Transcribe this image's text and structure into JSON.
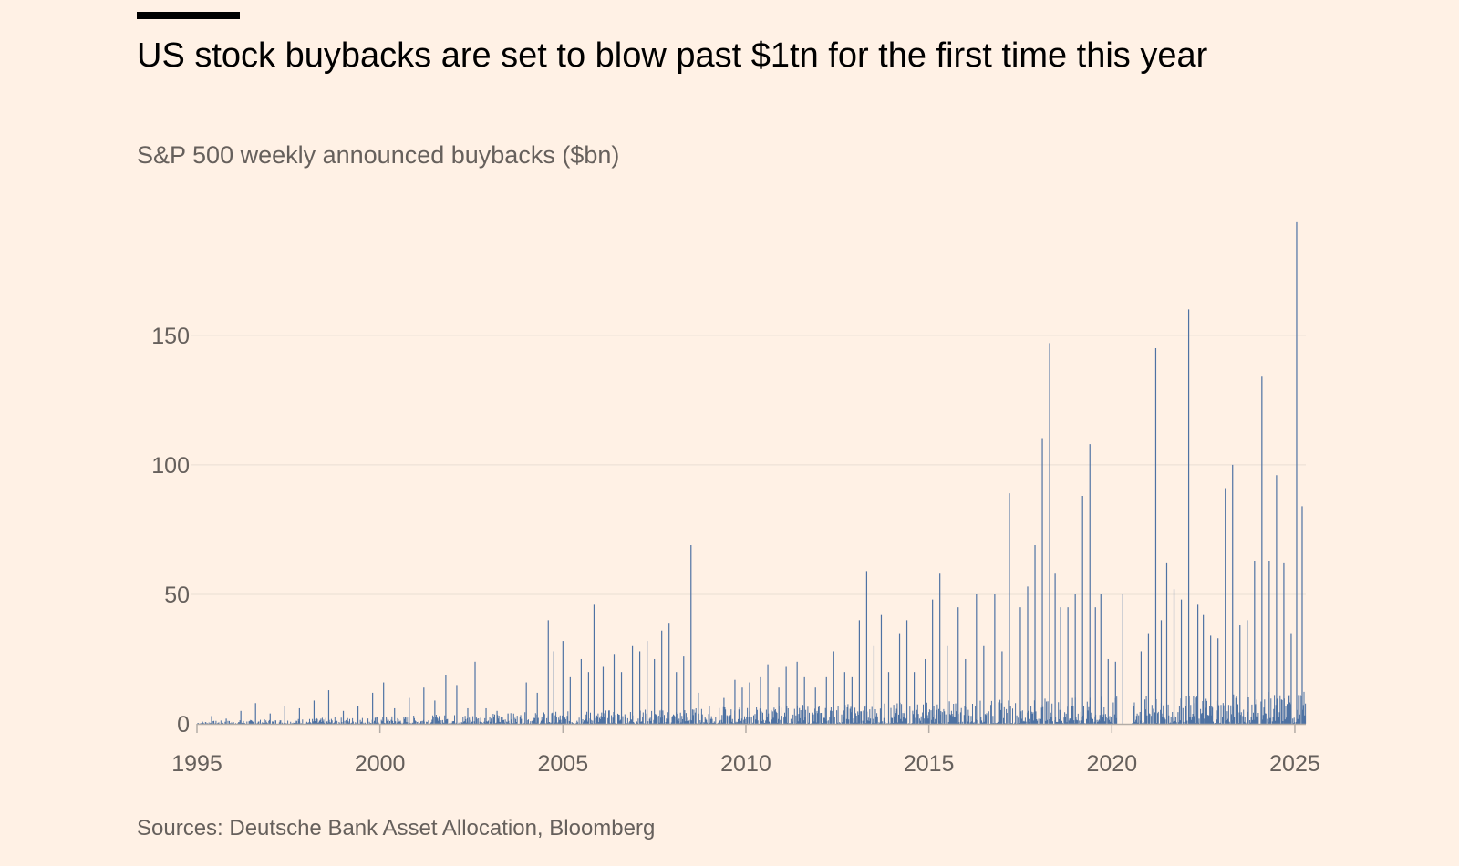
{
  "title": "US stock buybacks are set to blow past $1tn for the first time this year",
  "subtitle": "S&P 500 weekly announced buybacks ($bn)",
  "source": "Sources: Deutsche Bank Asset Allocation, Bloomberg",
  "colors": {
    "background": "#fff1e5",
    "bar": "#4e72a3",
    "grid": "#e9ded4",
    "axis": "#b3aca6",
    "text": "#66605c",
    "title": "#000000"
  },
  "chart_data": {
    "type": "bar",
    "title": "US stock buybacks are set to blow past $1tn for the first time this year",
    "subtitle": "S&P 500 weekly announced buybacks ($bn)",
    "xlabel": "",
    "ylabel": "",
    "xlim": [
      1995,
      2025.3
    ],
    "ylim": [
      0,
      195
    ],
    "grid": true,
    "legend": "none",
    "x_ticks": [
      1995,
      2000,
      2005,
      2010,
      2015,
      2020,
      2025
    ],
    "y_ticks": [
      0,
      50,
      100,
      150
    ],
    "series": [
      {
        "name": "",
        "x": [
          1995.4,
          1995.8,
          1996.2,
          1996.6,
          1997.0,
          1997.4,
          1997.8,
          1998.2,
          1998.6,
          1999.0,
          1999.4,
          1999.8,
          2000.1,
          2000.4,
          2000.8,
          2001.2,
          2001.5,
          2001.8,
          2002.1,
          2002.4,
          2002.6,
          2002.9,
          2003.2,
          2003.5,
          2004.0,
          2004.3,
          2004.6,
          2004.75,
          2005.0,
          2005.2,
          2005.5,
          2005.7,
          2005.85,
          2006.1,
          2006.4,
          2006.6,
          2006.9,
          2007.1,
          2007.3,
          2007.5,
          2007.7,
          2007.9,
          2008.1,
          2008.3,
          2008.5,
          2008.7,
          2009.0,
          2009.4,
          2009.7,
          2009.9,
          2010.1,
          2010.4,
          2010.6,
          2010.9,
          2011.1,
          2011.4,
          2011.6,
          2011.9,
          2012.2,
          2012.4,
          2012.7,
          2012.9,
          2013.1,
          2013.3,
          2013.5,
          2013.7,
          2013.9,
          2014.2,
          2014.4,
          2014.6,
          2014.9,
          2015.1,
          2015.3,
          2015.5,
          2015.8,
          2016.0,
          2016.3,
          2016.5,
          2016.8,
          2017.0,
          2017.2,
          2017.5,
          2017.7,
          2017.9,
          2018.1,
          2018.3,
          2018.45,
          2018.6,
          2018.8,
          2019.0,
          2019.2,
          2019.4,
          2019.55,
          2019.7,
          2019.9,
          2020.1,
          2020.3,
          2020.6,
          2020.8,
          2021.0,
          2021.2,
          2021.35,
          2021.5,
          2021.7,
          2021.9,
          2022.1,
          2022.35,
          2022.5,
          2022.7,
          2022.9,
          2023.1,
          2023.3,
          2023.5,
          2023.7,
          2023.9,
          2024.1,
          2024.3,
          2024.5,
          2024.7,
          2024.9,
          2025.05,
          2025.2
        ],
        "values": [
          3,
          2,
          5,
          8,
          4,
          7,
          6,
          9,
          13,
          5,
          7,
          12,
          16,
          6,
          10,
          14,
          9,
          19,
          15,
          6,
          24,
          6,
          5,
          4,
          16,
          12,
          40,
          28,
          32,
          18,
          25,
          20,
          46,
          22,
          27,
          20,
          30,
          28,
          32,
          25,
          36,
          39,
          20,
          26,
          69,
          12,
          7,
          10,
          17,
          14,
          16,
          18,
          23,
          14,
          22,
          24,
          18,
          14,
          18,
          28,
          20,
          18,
          40,
          59,
          30,
          42,
          20,
          35,
          40,
          20,
          25,
          48,
          58,
          30,
          45,
          25,
          50,
          30,
          50,
          28,
          89,
          45,
          53,
          69,
          110,
          147,
          58,
          45,
          45,
          50,
          88,
          108,
          45,
          50,
          25,
          24,
          50,
          6,
          28,
          35,
          145,
          40,
          62,
          52,
          48,
          160,
          46,
          42,
          34,
          33,
          91,
          100,
          38,
          40,
          63,
          134,
          63,
          96,
          62,
          35,
          194,
          84
        ]
      }
    ]
  }
}
